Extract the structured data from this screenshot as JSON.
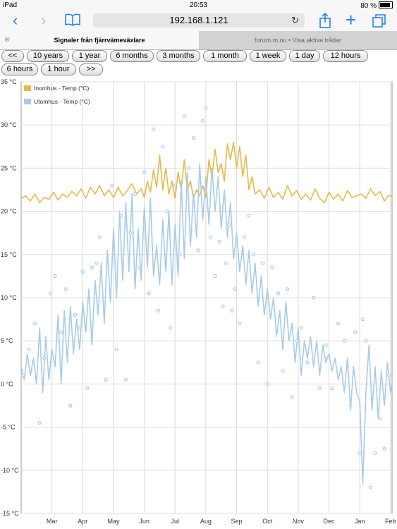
{
  "status_bar": {
    "device": "iPad",
    "time": "20:53",
    "battery": "80 %"
  },
  "browser": {
    "url": "192.168.1.121",
    "back_icon": "back-chevron-icon",
    "forward_icon": "forward-chevron-icon",
    "bookmarks_icon": "book-icon",
    "share_icon": "share-icon",
    "add_icon": "plus-icon",
    "tabs_icon": "tabs-icon",
    "tabs": [
      {
        "label": "Signaler från fjärrvämeväxlare",
        "active": true
      },
      {
        "label": "forum.m.nu • Visa aktiva trådar",
        "active": false
      }
    ]
  },
  "range_buttons": [
    "<<",
    "10 years",
    "1 year",
    "6 months",
    "3 months",
    "1 month",
    "1 week",
    "1 day",
    "12 hours",
    "6 hours",
    "1 hour",
    ">>"
  ],
  "chart_data": {
    "type": "line",
    "title": "",
    "xlabel": "",
    "ylabel": "",
    "ylim": [
      -15,
      35
    ],
    "yticks": [
      -15,
      -10,
      -5,
      0,
      5,
      10,
      15,
      20,
      25,
      30,
      35
    ],
    "ytick_labels": [
      "-15 °C",
      "-10 °C",
      "-5 °C",
      "0 °C",
      "5 °C",
      "10 °C",
      "15 °C",
      "20 °C",
      "25 °C",
      "30 °C",
      "35 °C"
    ],
    "x_unit": "month index (1 = Feb 1)",
    "xlim": [
      1,
      13.05
    ],
    "xticks": [
      2,
      3,
      4,
      5,
      6,
      7,
      8,
      9,
      10,
      11,
      12,
      13
    ],
    "xtick_labels": [
      "Mar",
      "Apr",
      "May",
      "Jun",
      "Jul",
      "Aug",
      "Sep",
      "Oct",
      "Nov",
      "Dec",
      "Jan",
      "Feb"
    ],
    "grid": true,
    "legend_position": "top-left",
    "series": [
      {
        "name": "Inomhus - Temp (°C)",
        "color": "#e8b84a",
        "x": [
          1.0,
          1.15,
          1.3,
          1.45,
          1.6,
          1.75,
          1.9,
          2.05,
          2.2,
          2.35,
          2.5,
          2.65,
          2.8,
          2.95,
          3.1,
          3.25,
          3.4,
          3.55,
          3.7,
          3.85,
          4.0,
          4.15,
          4.3,
          4.45,
          4.6,
          4.75,
          4.9,
          5.0,
          5.1,
          5.2,
          5.3,
          5.4,
          5.5,
          5.6,
          5.7,
          5.8,
          5.9,
          6.0,
          6.1,
          6.2,
          6.3,
          6.4,
          6.5,
          6.6,
          6.7,
          6.8,
          6.9,
          7.0,
          7.1,
          7.2,
          7.3,
          7.4,
          7.5,
          7.6,
          7.7,
          7.8,
          7.9,
          8.0,
          8.1,
          8.2,
          8.3,
          8.4,
          8.5,
          8.6,
          8.75,
          8.9,
          9.05,
          9.2,
          9.35,
          9.5,
          9.65,
          9.8,
          9.95,
          10.1,
          10.25,
          10.4,
          10.55,
          10.7,
          10.85,
          11.0,
          11.15,
          11.3,
          11.45,
          11.6,
          11.75,
          11.9,
          12.05,
          12.2,
          12.35,
          12.5,
          12.65,
          12.8,
          12.95,
          13.05
        ],
        "y": [
          21.5,
          21.8,
          21.2,
          22.0,
          21.0,
          21.6,
          21.4,
          22.2,
          21.3,
          22.0,
          21.6,
          22.3,
          21.8,
          22.6,
          21.5,
          22.8,
          22.0,
          23.0,
          21.8,
          22.5,
          21.6,
          22.8,
          21.8,
          22.4,
          23.2,
          22.0,
          22.6,
          21.6,
          23.5,
          22.2,
          24.8,
          22.8,
          26.5,
          22.5,
          25.0,
          22.0,
          23.5,
          21.5,
          24.5,
          22.5,
          26.0,
          22.5,
          23.5,
          21.5,
          22.5,
          21.8,
          23.0,
          21.6,
          26.0,
          24.0,
          27.2,
          24.5,
          25.5,
          23.5,
          27.8,
          26.0,
          28.0,
          25.0,
          27.5,
          24.0,
          26.5,
          22.5,
          24.0,
          22.0,
          22.5,
          21.5,
          22.8,
          21.6,
          22.2,
          21.4,
          23.0,
          21.8,
          22.4,
          21.4,
          22.0,
          21.3,
          22.6,
          21.5,
          21.0,
          22.2,
          21.4,
          22.0,
          21.2,
          22.4,
          21.6,
          21.8,
          22.0,
          21.5,
          22.6,
          21.8,
          22.3,
          21.2,
          21.9,
          21.7
        ]
      },
      {
        "name": "Utomhus - Temp (°C)",
        "color": "#a9cbe8",
        "x": [
          1.0,
          1.1,
          1.2,
          1.3,
          1.4,
          1.5,
          1.6,
          1.7,
          1.8,
          1.9,
          2.0,
          2.1,
          2.2,
          2.3,
          2.4,
          2.5,
          2.6,
          2.7,
          2.8,
          2.9,
          3.0,
          3.1,
          3.2,
          3.3,
          3.4,
          3.5,
          3.6,
          3.7,
          3.8,
          3.9,
          4.0,
          4.1,
          4.2,
          4.3,
          4.4,
          4.5,
          4.6,
          4.7,
          4.8,
          4.9,
          5.0,
          5.1,
          5.2,
          5.3,
          5.4,
          5.5,
          5.6,
          5.7,
          5.8,
          5.9,
          6.0,
          6.1,
          6.2,
          6.3,
          6.4,
          6.5,
          6.6,
          6.7,
          6.8,
          6.9,
          7.0,
          7.1,
          7.2,
          7.3,
          7.4,
          7.5,
          7.6,
          7.7,
          7.8,
          7.9,
          8.0,
          8.1,
          8.2,
          8.3,
          8.4,
          8.5,
          8.6,
          8.7,
          8.8,
          8.9,
          9.0,
          9.1,
          9.2,
          9.3,
          9.4,
          9.5,
          9.6,
          9.7,
          9.8,
          9.9,
          10.0,
          10.1,
          10.2,
          10.3,
          10.4,
          10.5,
          10.6,
          10.7,
          10.8,
          10.9,
          11.0,
          11.1,
          11.2,
          11.3,
          11.4,
          11.5,
          11.6,
          11.7,
          11.8,
          11.9,
          12.0,
          12.1,
          12.2,
          12.3,
          12.4,
          12.5,
          12.6,
          12.7,
          12.8,
          12.9,
          13.0,
          13.05
        ],
        "y": [
          2.0,
          0.5,
          3.5,
          1.0,
          3.0,
          0.0,
          6.5,
          -1.0,
          5.5,
          0.5,
          4.0,
          2.0,
          8.0,
          0.0,
          8.5,
          2.5,
          9.0,
          3.5,
          7.5,
          4.0,
          9.5,
          6.0,
          11.0,
          4.5,
          12.0,
          8.0,
          14.0,
          7.0,
          15.5,
          9.5,
          18.0,
          10.0,
          20.0,
          12.0,
          21.0,
          13.0,
          22.0,
          11.0,
          18.0,
          12.0,
          20.5,
          13.5,
          21.5,
          12.5,
          16.0,
          11.5,
          19.0,
          13.0,
          20.0,
          11.5,
          18.5,
          12.5,
          23.5,
          14.5,
          24.5,
          16.0,
          22.0,
          17.0,
          25.5,
          19.0,
          24.0,
          18.5,
          25.0,
          20.0,
          24.0,
          18.0,
          22.5,
          17.0,
          21.0,
          14.5,
          17.5,
          13.0,
          16.0,
          11.5,
          15.5,
          10.5,
          14.0,
          9.0,
          12.5,
          8.0,
          11.0,
          7.5,
          10.0,
          5.5,
          8.5,
          4.0,
          9.5,
          5.0,
          7.0,
          2.5,
          6.5,
          1.0,
          5.0,
          3.0,
          5.5,
          2.0,
          5.0,
          1.0,
          4.5,
          2.5,
          3.5,
          1.5,
          3.0,
          0.5,
          2.0,
          -1.0,
          3.0,
          -3.0,
          2.0,
          -1.0,
          -2.0,
          -11.5,
          -1.0,
          4.5,
          -3.0,
          2.0,
          -4.0,
          1.5,
          -2.5,
          2.5,
          -1.0,
          0.0
        ]
      },
      {
        "name": "",
        "type": "scatter",
        "color": "#a9cbe8",
        "x": [
          1.05,
          1.25,
          1.45,
          1.6,
          1.75,
          1.95,
          2.1,
          2.3,
          2.45,
          2.6,
          2.75,
          2.9,
          3.0,
          3.15,
          3.3,
          3.45,
          3.55,
          3.75,
          3.95,
          4.1,
          4.25,
          4.4,
          4.55,
          4.7,
          4.85,
          5.0,
          5.15,
          5.3,
          5.45,
          5.6,
          5.75,
          5.85,
          6.0,
          6.15,
          6.3,
          6.45,
          6.6,
          6.75,
          6.9,
          7.0,
          7.15,
          7.3,
          7.45,
          7.55,
          7.65,
          7.75,
          7.85,
          7.95,
          8.1,
          8.25,
          8.4,
          8.55,
          8.7,
          8.85,
          9.0,
          9.15,
          9.35,
          9.5,
          9.65,
          9.8,
          9.95,
          10.1,
          10.3,
          10.5,
          10.7,
          10.9,
          11.1,
          11.3,
          11.5,
          11.7,
          11.85,
          12.0,
          12.1,
          12.2,
          12.35,
          12.5,
          12.65,
          12.8,
          12.95
        ],
        "y": [
          1.0,
          4.0,
          7.0,
          -4.5,
          3.0,
          10.5,
          12.5,
          6.0,
          11.0,
          -2.5,
          8.0,
          6.5,
          13.0,
          -0.5,
          13.5,
          14.0,
          17.0,
          0.5,
          23.0,
          4.0,
          19.5,
          0.5,
          17.5,
          22.0,
          13.5,
          24.5,
          10.5,
          29.5,
          8.5,
          27.5,
          20.0,
          6.5,
          23.0,
          15.0,
          31.0,
          25.0,
          28.5,
          15.5,
          30.5,
          32.0,
          17.0,
          12.5,
          16.5,
          9.0,
          14.0,
          18.5,
          8.5,
          11.0,
          7.0,
          17.0,
          19.5,
          15.0,
          2.5,
          14.0,
          0.0,
          13.5,
          10.5,
          1.5,
          11.0,
          -1.5,
          5.0,
          6.5,
          2.5,
          10.0,
          -0.5,
          4.5,
          -0.5,
          7.0,
          5.0,
          -2.5,
          6.0,
          -8.0,
          7.5,
          5.0,
          -12.0,
          -8.0,
          -4.0,
          -7.5,
          1.0
        ]
      }
    ]
  }
}
